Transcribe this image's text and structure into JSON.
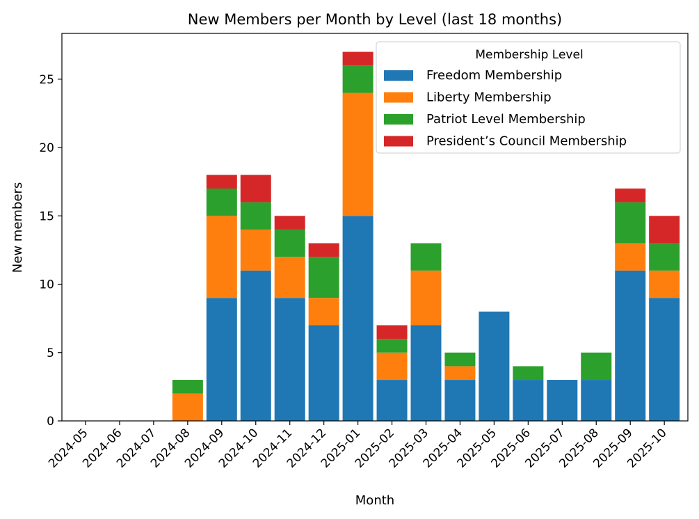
{
  "chart_data": {
    "type": "bar",
    "stacked": true,
    "title": "New Members per Month by Level (last 18 months)",
    "xlabel": "Month",
    "ylabel": "New members",
    "ylim": [
      0,
      28.35
    ],
    "yticks": [
      0,
      5,
      10,
      15,
      20,
      25
    ],
    "categories": [
      "2024-05",
      "2024-06",
      "2024-07",
      "2024-08",
      "2024-09",
      "2024-10",
      "2024-11",
      "2024-12",
      "2025-01",
      "2025-02",
      "2025-03",
      "2025-04",
      "2025-05",
      "2025-06",
      "2025-07",
      "2025-08",
      "2025-09",
      "2025-10"
    ],
    "legend": {
      "title": "Membership Level",
      "placement": "top-right"
    },
    "series": [
      {
        "name": "Freedom Membership",
        "color": "#1f77b4",
        "values": [
          0,
          0,
          0,
          0,
          9,
          11,
          9,
          7,
          15,
          3,
          7,
          3,
          8,
          3,
          3,
          3,
          11,
          9
        ]
      },
      {
        "name": "Liberty Membership",
        "color": "#ff7f0e",
        "values": [
          0,
          0,
          0,
          2,
          6,
          3,
          3,
          2,
          9,
          2,
          4,
          1,
          0,
          0,
          0,
          0,
          2,
          2
        ]
      },
      {
        "name": "Patriot Level Membership",
        "color": "#2ca02c",
        "values": [
          0,
          0,
          0,
          1,
          2,
          2,
          2,
          3,
          2,
          1,
          2,
          1,
          0,
          1,
          0,
          2,
          3,
          2
        ]
      },
      {
        "name": "President’s Council Membership",
        "color": "#d62728",
        "values": [
          0,
          0,
          0,
          0,
          1,
          2,
          1,
          1,
          1,
          1,
          0,
          0,
          0,
          0,
          0,
          0,
          1,
          2
        ]
      }
    ]
  }
}
